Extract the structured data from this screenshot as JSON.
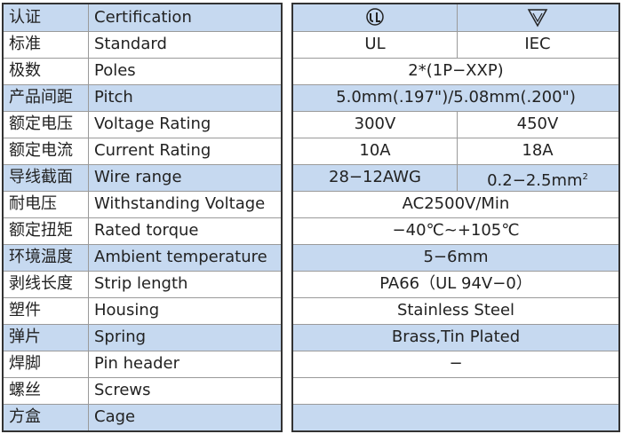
{
  "table": {
    "rows": [
      {
        "zh": "认证",
        "en": "Certification",
        "values": []
      },
      {
        "zh": "标准",
        "en": "Standard",
        "values": [
          "UL",
          "IEC"
        ]
      },
      {
        "zh": "极数",
        "en": "Poles",
        "values": [
          "2*(1P−XXP)"
        ]
      },
      {
        "zh": "产品间距",
        "en": "Pitch",
        "values": [
          "5.0mm(.197\")/5.08mm(.200\")"
        ]
      },
      {
        "zh": "额定电压",
        "en": "Voltage Rating",
        "values": [
          "300V",
          "450V"
        ]
      },
      {
        "zh": "额定电流",
        "en": "Current Rating",
        "values": [
          "10A",
          "18A"
        ]
      },
      {
        "zh": "导线截面",
        "en": "Wire range",
        "values": [
          "28−12AWG",
          {
            "text": "0.2−2.5mm",
            "sup": "2"
          }
        ]
      },
      {
        "zh": "耐电压",
        "en": "Withstanding Voltage",
        "values": [
          "AC2500V/Min"
        ]
      },
      {
        "zh": "额定扭矩",
        "en": "Rated torque",
        "values": [
          "−40℃~+105℃"
        ]
      },
      {
        "zh": "环境温度",
        "en": "Ambient temperature",
        "values": [
          "5−6mm"
        ]
      },
      {
        "zh": "剥线长度",
        "en": "Strip length",
        "values": [
          "PA66（UL 94V−0）"
        ]
      },
      {
        "zh": "塑件",
        "en": "Housing",
        "values": [
          "Stainless Steel"
        ]
      },
      {
        "zh": "弹片",
        "en": "Spring",
        "values": [
          "Brass,Tin Plated"
        ]
      },
      {
        "zh": "焊脚",
        "en": "Pin header",
        "values": [
          "−"
        ]
      },
      {
        "zh": "螺丝",
        "en": "Screws",
        "values": []
      },
      {
        "zh": "方盒",
        "en": "Cage",
        "values": []
      }
    ],
    "highlight_rows": [
      0,
      3,
      6,
      9,
      12,
      15
    ],
    "highlight_color": "#c6d9f0"
  }
}
